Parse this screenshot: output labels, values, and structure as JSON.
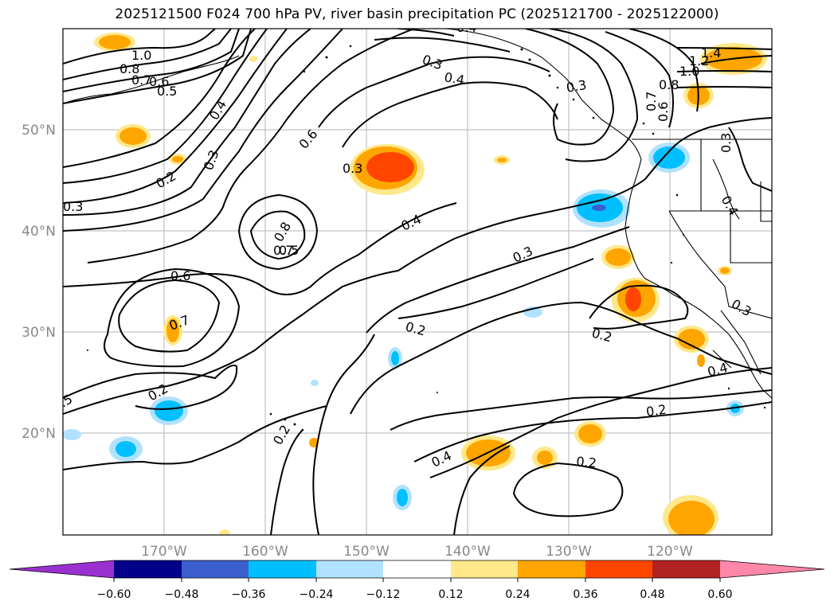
{
  "title": "2025121500 F024 700 hPa PV, river basin precipitation PC (2025121700 - 2025122000)",
  "axes": {
    "lon_ticks": [
      "170°W",
      "160°W",
      "150°W",
      "140°W",
      "130°W",
      "120°W"
    ],
    "lat_ticks": [
      "50°N",
      "40°N",
      "30°N",
      "20°N"
    ]
  },
  "colorbar": {
    "tick_labels": [
      "−0.60",
      "−0.48",
      "−0.36",
      "−0.24",
      "−0.12",
      "0.12",
      "0.24",
      "0.36",
      "0.48",
      "0.60"
    ],
    "colors": [
      "#9b30d0",
      "#00008b",
      "#3a5fcd",
      "#00bfff",
      "#b0e2ff",
      "#ffffff",
      "#ffe88a",
      "#ffa500",
      "#ff4500",
      "#b22222",
      "#ff88aa"
    ]
  },
  "contour_labels": [
    "1.0",
    "0.8",
    "0.7",
    "0.6",
    "0.5",
    "0.4",
    "0.3",
    "0.2",
    "1.4",
    "1.2",
    "1.0",
    "0.8",
    "0.7",
    "0.6",
    "0.3",
    "0.4",
    "0.5",
    "0.6",
    "0.8",
    "0.7",
    "0.6",
    "0.7",
    "0.3",
    "0.4",
    "0.3",
    "0.2",
    "0.2",
    "0.4",
    "0.2",
    "0.2",
    "0.4",
    "0.2",
    ".5",
    "0.2",
    "0.3",
    "0.3",
    "0.4",
    "0.3",
    "0.3",
    "0.4"
  ]
}
